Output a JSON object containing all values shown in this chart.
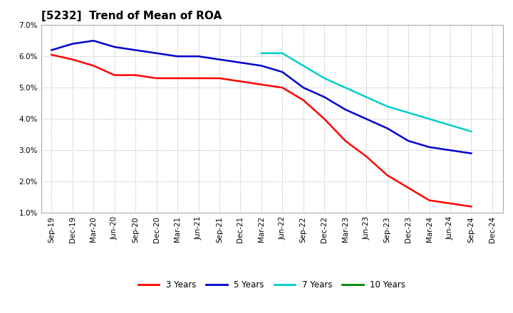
{
  "title": "[5232]  Trend of Mean of ROA",
  "ylim": [
    0.01,
    0.07
  ],
  "yticks": [
    0.01,
    0.02,
    0.03,
    0.04,
    0.05,
    0.06,
    0.07
  ],
  "ytick_labels": [
    "1.0%",
    "2.0%",
    "3.0%",
    "4.0%",
    "5.0%",
    "6.0%",
    "7.0%"
  ],
  "background_color": "#ffffff",
  "plot_bg_color": "#ffffff",
  "grid_color": "#aaaaaa",
  "x_labels": [
    "Sep-19",
    "Dec-19",
    "Mar-20",
    "Jun-20",
    "Sep-20",
    "Dec-20",
    "Mar-21",
    "Jun-21",
    "Sep-21",
    "Dec-21",
    "Mar-22",
    "Jun-22",
    "Sep-22",
    "Dec-22",
    "Mar-23",
    "Jun-23",
    "Sep-23",
    "Dec-23",
    "Mar-24",
    "Jun-24",
    "Sep-24",
    "Dec-24"
  ],
  "series": {
    "3 Years": {
      "color": "#ff0000",
      "data_x": [
        0,
        1,
        2,
        3,
        4,
        5,
        6,
        7,
        8,
        9,
        10,
        11,
        12,
        13,
        14,
        15,
        16,
        17,
        18,
        19,
        20
      ],
      "data_y": [
        0.0605,
        0.059,
        0.057,
        0.054,
        0.054,
        0.053,
        0.053,
        0.053,
        0.053,
        0.052,
        0.051,
        0.05,
        0.046,
        0.04,
        0.033,
        0.028,
        0.022,
        0.018,
        0.014,
        0.013,
        0.012
      ]
    },
    "5 Years": {
      "color": "#0000cc",
      "data_x": [
        0,
        1,
        2,
        3,
        4,
        5,
        6,
        7,
        8,
        9,
        10,
        11,
        12,
        13,
        14,
        15,
        16,
        17,
        18,
        19,
        20
      ],
      "data_y": [
        0.062,
        0.064,
        0.065,
        0.063,
        0.062,
        0.061,
        0.06,
        0.06,
        0.059,
        0.058,
        0.057,
        0.055,
        0.05,
        0.047,
        0.043,
        0.04,
        0.037,
        0.033,
        0.031,
        0.03,
        0.029
      ]
    },
    "7 Years": {
      "color": "#00cccc",
      "data_x": [
        10,
        11,
        12,
        13,
        14,
        15,
        16,
        17,
        18,
        19,
        20
      ],
      "data_y": [
        0.061,
        0.061,
        0.057,
        0.053,
        0.05,
        0.047,
        0.044,
        0.042,
        0.04,
        0.038,
        0.036
      ]
    },
    "10 Years": {
      "color": "#008800",
      "data_x": [],
      "data_y": []
    }
  },
  "legend_entries": [
    "3 Years",
    "5 Years",
    "7 Years",
    "10 Years"
  ],
  "legend_colors": [
    "#ff0000",
    "#0000cc",
    "#00cccc",
    "#008800"
  ],
  "title_fontsize": 11,
  "tick_fontsize": 7.5,
  "linewidth": 1.8
}
